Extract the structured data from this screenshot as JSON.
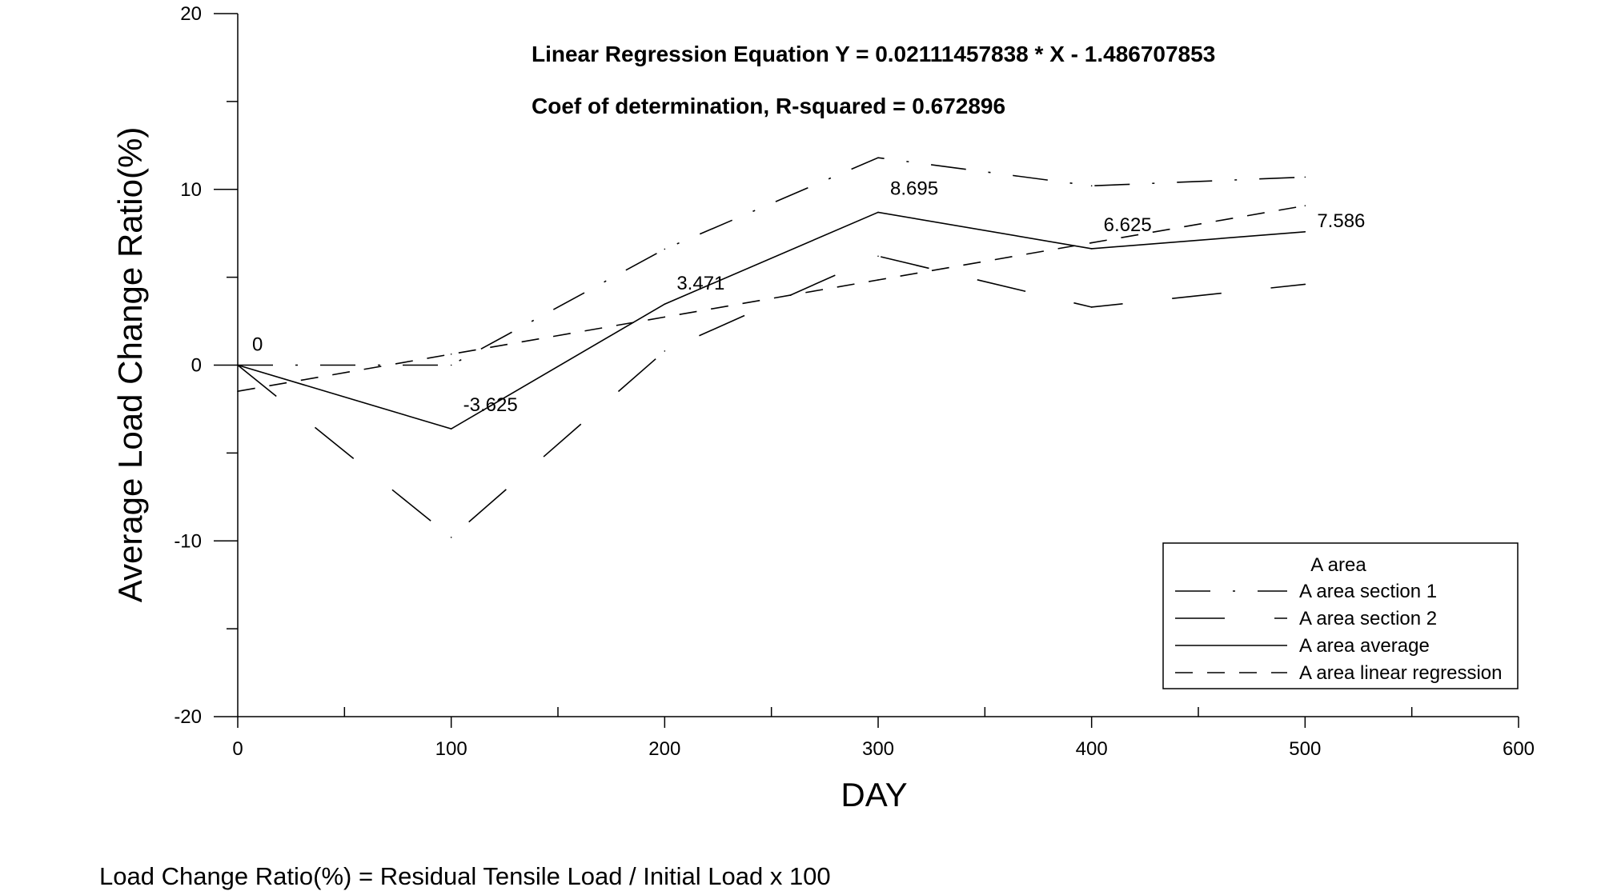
{
  "chart_data": {
    "type": "line",
    "xlabel": "DAY",
    "ylabel": "Average Load Change Ratio(%)",
    "xlim": [
      0,
      600
    ],
    "ylim": [
      -20,
      20
    ],
    "x_ticks": [
      0,
      100,
      200,
      300,
      400,
      500,
      600
    ],
    "x_minor_ticks": [
      50,
      150,
      250,
      350,
      450,
      550
    ],
    "y_ticks": [
      -20,
      -10,
      0,
      10,
      20
    ],
    "y_minor_ticks": [
      -15,
      -5,
      5,
      15
    ],
    "grid": false,
    "annotations": {
      "equation": "Linear Regression Equation Y = 0.02111457838 * X - 1.486707853",
      "r_squared": "Coef of determination, R-squared = 0.672896"
    },
    "legend": {
      "title": "A area",
      "position": "bottom-right",
      "entries": [
        "A area section 1",
        "A area section 2",
        "A area average",
        "A area linear regression"
      ]
    },
    "x": [
      0,
      100,
      200,
      300,
      400,
      500
    ],
    "series": [
      {
        "name": "A area section 1",
        "style": "dash-dot",
        "values": [
          0,
          0,
          6.6,
          11.8,
          10.2,
          10.7
        ]
      },
      {
        "name": "A area section 2",
        "style": "long-dash",
        "values": [
          0,
          -9.8,
          0.8,
          6.2,
          3.3,
          4.6
        ]
      },
      {
        "name": "A area average",
        "style": "solid",
        "values": [
          0,
          -3.625,
          3.471,
          8.695,
          6.625,
          7.586
        ]
      },
      {
        "name": "A area linear regression",
        "style": "dash",
        "values": [
          -1.487,
          0.624,
          2.736,
          4.847,
          6.959,
          9.071
        ]
      }
    ],
    "data_labels": [
      "0",
      "-3.625",
      "3.471",
      "8.695",
      "6.625",
      "7.586"
    ]
  },
  "footnote": "Load Change Ratio(%) = Residual Tensile Load / Initial Load x 100"
}
